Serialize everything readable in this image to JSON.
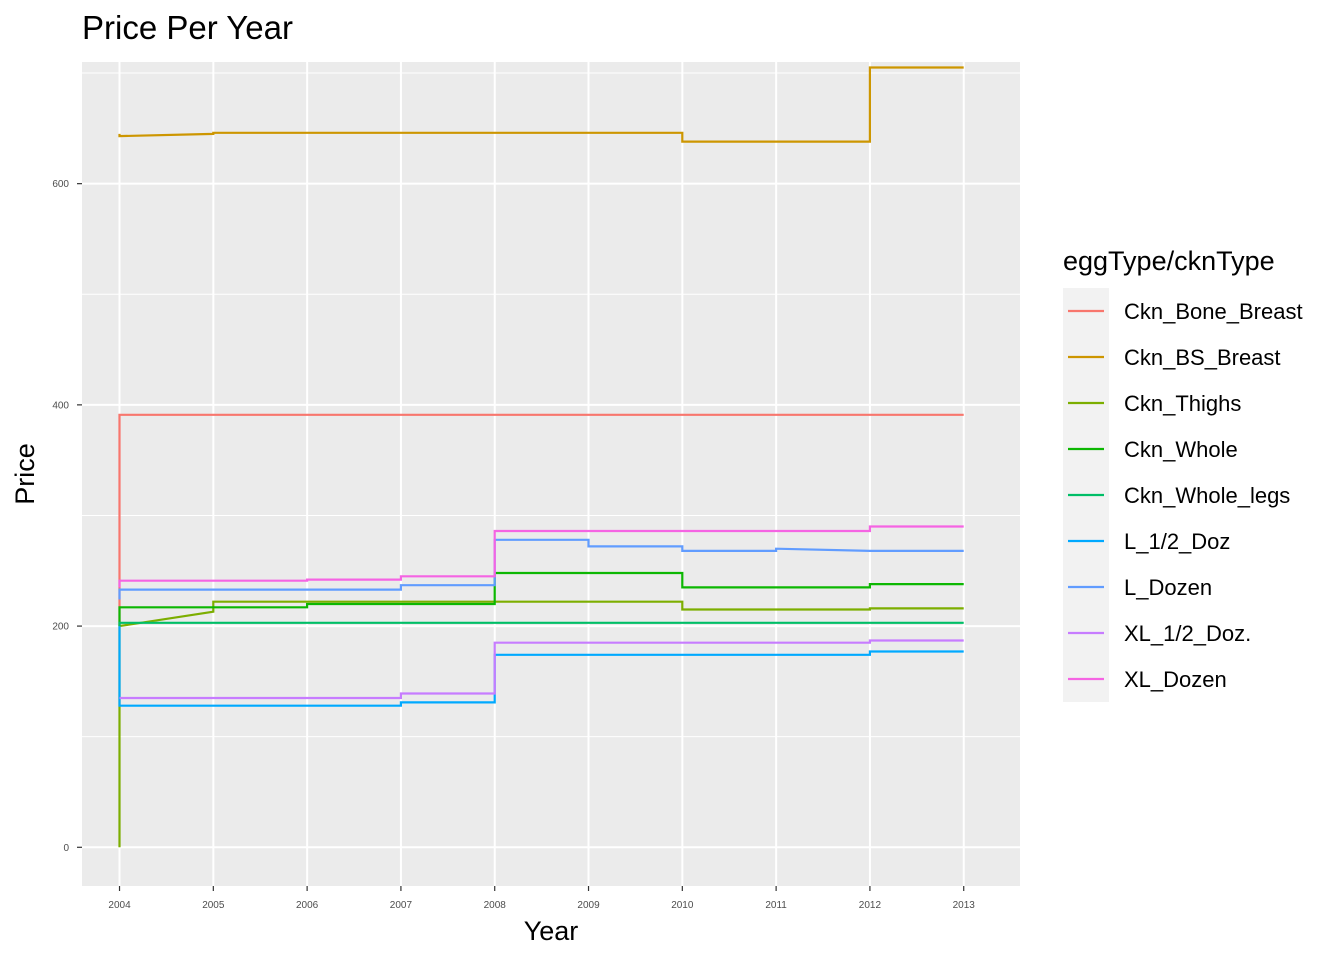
{
  "chart_data": {
    "type": "line",
    "title": "Price Per Year",
    "xlabel": "Year",
    "ylabel": "Price",
    "xlim": [
      2003.6,
      2013.6
    ],
    "ylim": [
      -35,
      710
    ],
    "x_ticks": [
      2004,
      2005,
      2006,
      2007,
      2008,
      2009,
      2010,
      2011,
      2012,
      2013
    ],
    "y_ticks": [
      0,
      200,
      400,
      600
    ],
    "grid": true,
    "legend": {
      "title": "eggType/cknType",
      "position": "right"
    },
    "series": [
      {
        "name": "Ckn_Bone_Breast",
        "color": "#F8766D",
        "points": [
          [
            2004,
            200
          ],
          [
            2004,
            391
          ],
          [
            2013,
            391
          ]
        ]
      },
      {
        "name": "Ckn_BS_Breast",
        "color": "#CD9600",
        "points": [
          [
            2004,
            645
          ],
          [
            2004,
            643
          ],
          [
            2005,
            645
          ],
          [
            2005,
            646
          ],
          [
            2010,
            646
          ],
          [
            2010,
            638
          ],
          [
            2012,
            638
          ],
          [
            2012,
            705
          ],
          [
            2013,
            705
          ]
        ]
      },
      {
        "name": "Ckn_Thighs",
        "color": "#7CAE00",
        "points": [
          [
            2004,
            0
          ],
          [
            2004,
            200
          ],
          [
            2005,
            213
          ],
          [
            2005,
            222
          ],
          [
            2010,
            222
          ],
          [
            2010,
            215
          ],
          [
            2012,
            215
          ],
          [
            2012,
            216
          ],
          [
            2013,
            216
          ]
        ]
      },
      {
        "name": "Ckn_Whole",
        "color": "#0CB702",
        "points": [
          [
            2004,
            200
          ],
          [
            2004,
            217
          ],
          [
            2006,
            217
          ],
          [
            2006,
            220
          ],
          [
            2008,
            220
          ],
          [
            2008,
            248
          ],
          [
            2010,
            248
          ],
          [
            2010,
            235
          ],
          [
            2012,
            235
          ],
          [
            2012,
            238
          ],
          [
            2013,
            238
          ]
        ]
      },
      {
        "name": "Ckn_Whole_legs",
        "color": "#00BE67",
        "points": [
          [
            2004,
            200
          ],
          [
            2004,
            203
          ],
          [
            2013,
            203
          ]
        ]
      },
      {
        "name": "L_1/2_Doz",
        "color": "#00A9FF",
        "points": [
          [
            2004,
            200
          ],
          [
            2004,
            128
          ],
          [
            2007,
            128
          ],
          [
            2007,
            131
          ],
          [
            2008,
            131
          ],
          [
            2008,
            174
          ],
          [
            2012,
            174
          ],
          [
            2012,
            177
          ],
          [
            2013,
            177
          ]
        ]
      },
      {
        "name": "L_Dozen",
        "color": "#619CFF",
        "points": [
          [
            2004,
            224
          ],
          [
            2004,
            233
          ],
          [
            2007,
            233
          ],
          [
            2007,
            237
          ],
          [
            2008,
            237
          ],
          [
            2008,
            278
          ],
          [
            2009,
            278
          ],
          [
            2009,
            272
          ],
          [
            2010,
            272
          ],
          [
            2010,
            268
          ],
          [
            2011,
            268
          ],
          [
            2011,
            270
          ],
          [
            2012,
            268
          ],
          [
            2013,
            268
          ]
        ]
      },
      {
        "name": "XL_1/2_Doz.",
        "color": "#C77CFF",
        "points": [
          [
            2004,
            135
          ],
          [
            2007,
            135
          ],
          [
            2007,
            139
          ],
          [
            2008,
            139
          ],
          [
            2008,
            185
          ],
          [
            2012,
            185
          ],
          [
            2012,
            187
          ],
          [
            2013,
            187
          ]
        ]
      },
      {
        "name": "XL_Dozen",
        "color": "#F564E3",
        "points": [
          [
            2004,
            235
          ],
          [
            2004,
            241
          ],
          [
            2006,
            241
          ],
          [
            2006,
            242
          ],
          [
            2007,
            242
          ],
          [
            2007,
            245
          ],
          [
            2008,
            245
          ],
          [
            2008,
            286
          ],
          [
            2012,
            286
          ],
          [
            2012,
            290
          ],
          [
            2013,
            290
          ]
        ]
      }
    ]
  }
}
